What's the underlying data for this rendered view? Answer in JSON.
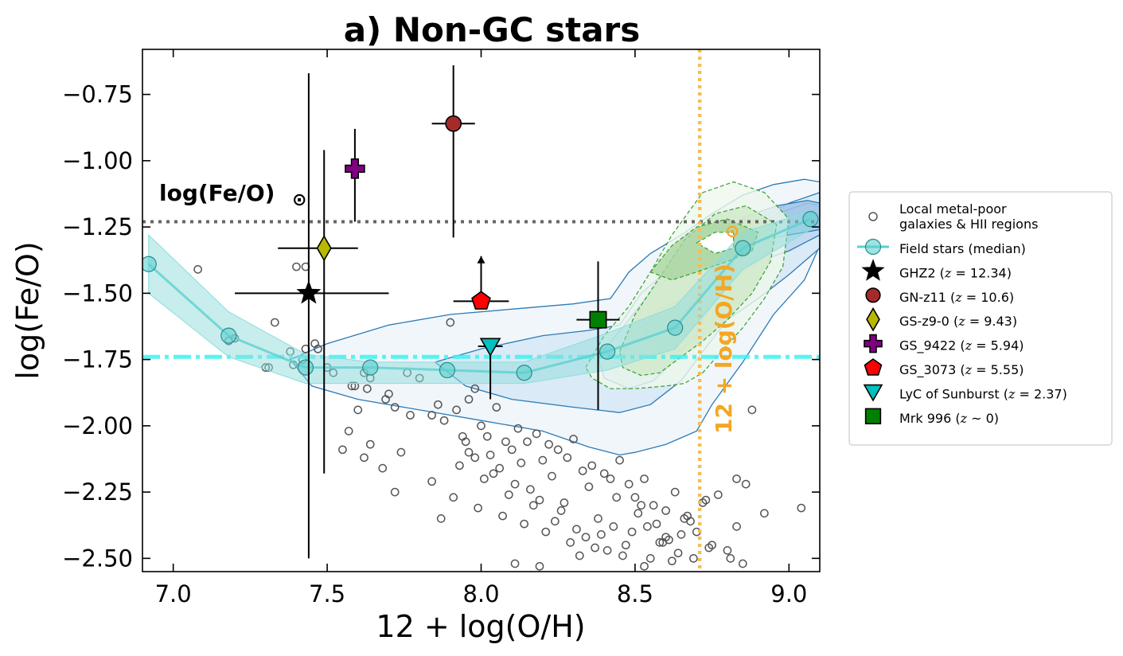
{
  "chart_data": {
    "type": "scatter",
    "title": "a) Non-GC stars",
    "xlabel": "12 + log(O/H)",
    "ylabel": "log(Fe/O)",
    "xlim": [
      6.9,
      9.1
    ],
    "ylim": [
      -2.55,
      -0.58
    ],
    "xticks": [
      7.0,
      7.5,
      8.0,
      8.5,
      9.0
    ],
    "xtick_labels": [
      "7.0",
      "7.5",
      "8.0",
      "8.5",
      "9.0"
    ],
    "yticks": [
      -0.75,
      -1.0,
      -1.25,
      -1.5,
      -1.75,
      -2.0,
      -2.25,
      -2.5
    ],
    "ytick_labels": [
      "−0.75",
      "−1.00",
      "−1.25",
      "−1.50",
      "−1.75",
      "−2.00",
      "−2.25",
      "−2.50"
    ],
    "legend_position": "right",
    "colors": {
      "field": "#5ecfcf",
      "field_band": "#8fdcdc",
      "cyan_line": "#3cf2f2",
      "solar_line": "#666666",
      "oh_line": "#f5bd55",
      "oh_text": "#f5a623",
      "contour_blue": "#2c7bb6",
      "contour_green": "#33a02c",
      "local_marker": "#555555"
    },
    "annotations": {
      "solar_fe_o_label": "log(Fe/O)",
      "solar_symbol": "⊙",
      "solar_fe_o_value": -1.23,
      "solar_oh_label": "12 + log(O/H)",
      "solar_oh_value": 8.71,
      "cyan_reference_value": -1.74
    },
    "field_stars_median": {
      "x": [
        6.92,
        7.18,
        7.43,
        7.64,
        7.89,
        8.14,
        8.41,
        8.63,
        8.85,
        9.07
      ],
      "y": [
        -1.39,
        -1.66,
        -1.78,
        -1.78,
        -1.79,
        -1.8,
        -1.72,
        -1.63,
        -1.33,
        -1.22
      ],
      "band_low": [
        -1.28,
        -1.57,
        -1.73,
        -1.76,
        -1.76,
        -1.76,
        -1.65,
        -1.55,
        -1.27,
        -1.19
      ],
      "band_high": [
        -1.5,
        -1.74,
        -1.84,
        -1.84,
        -1.84,
        -1.84,
        -1.79,
        -1.71,
        -1.41,
        -1.26
      ]
    },
    "local_metal_poor": {
      "x": [
        7.38,
        7.42,
        7.43,
        7.08,
        7.33,
        7.2,
        7.18,
        7.3,
        7.39,
        7.4,
        7.43,
        7.46,
        7.47,
        7.5,
        7.52,
        7.58,
        7.62,
        7.6,
        7.63,
        7.64,
        7.69,
        7.7,
        7.72,
        7.76,
        7.8,
        7.84,
        7.86,
        7.88,
        7.9,
        7.92,
        7.94,
        7.96,
        7.98,
        8.0,
        8.02,
        8.05,
        8.08,
        8.1,
        8.12,
        8.15,
        8.18,
        8.2,
        8.22,
        8.25,
        8.28,
        8.3,
        8.33,
        8.36,
        8.4,
        8.42,
        8.45,
        8.48,
        8.5,
        8.53,
        8.56,
        8.6,
        8.63,
        8.66,
        8.7,
        8.75,
        8.8,
        8.85,
        8.92,
        8.88,
        9.04,
        7.31,
        7.57,
        7.72,
        7.87,
        7.96,
        8.04,
        8.11,
        8.19,
        8.26,
        8.34,
        8.43,
        8.52,
        8.58,
        8.64,
        8.69,
        8.77,
        8.83,
        7.59,
        7.64,
        7.68,
        7.84,
        7.91,
        7.99,
        8.07,
        8.14,
        8.21,
        8.29,
        8.37,
        8.46,
        8.55,
        8.61,
        8.68,
        8.73,
        8.86,
        7.55,
        7.62,
        7.74,
        7.93,
        8.01,
        8.09,
        8.17,
        8.24,
        8.31,
        8.39,
        8.47,
        8.54,
        8.6,
        8.67,
        8.72,
        7.77,
        7.95,
        8.03,
        8.13,
        8.23,
        8.35,
        8.44,
        8.51,
        8.57,
        8.65,
        8.74,
        8.81,
        7.98,
        8.06,
        8.16,
        8.27,
        8.38,
        8.49,
        8.59,
        8.83,
        8.11,
        8.19,
        8.32,
        8.41,
        8.53,
        8.62
      ],
      "y": [
        -1.72,
        -1.75,
        -1.71,
        -1.41,
        -1.61,
        -1.67,
        -1.68,
        -1.78,
        -1.77,
        -1.4,
        -1.4,
        -1.69,
        -1.71,
        -1.78,
        -1.8,
        -1.85,
        -1.8,
        -1.94,
        -1.86,
        -1.82,
        -1.9,
        -1.88,
        -1.93,
        -1.8,
        -1.82,
        -1.96,
        -1.92,
        -1.98,
        -1.61,
        -1.94,
        -2.04,
        -1.9,
        -1.86,
        -2.0,
        -2.04,
        -1.93,
        -2.06,
        -2.09,
        -2.01,
        -2.06,
        -2.03,
        -2.13,
        -2.07,
        -2.09,
        -2.12,
        -2.05,
        -2.17,
        -2.15,
        -2.18,
        -2.2,
        -2.13,
        -2.22,
        -2.27,
        -2.2,
        -2.3,
        -2.32,
        -2.25,
        -2.35,
        -2.4,
        -2.45,
        -2.47,
        -2.52,
        -2.33,
        -1.94,
        -2.31,
        -1.78,
        -2.02,
        -2.25,
        -2.35,
        -2.1,
        -2.18,
        -2.22,
        -2.28,
        -2.32,
        -2.42,
        -2.38,
        -2.3,
        -2.44,
        -2.48,
        -2.5,
        -2.26,
        -2.38,
        -1.85,
        -2.07,
        -2.16,
        -2.21,
        -2.27,
        -2.31,
        -2.34,
        -2.37,
        -2.4,
        -2.44,
        -2.46,
        -2.49,
        -2.5,
        -2.43,
        -2.36,
        -2.28,
        -2.22,
        -2.09,
        -2.12,
        -2.1,
        -2.15,
        -2.2,
        -2.26,
        -2.3,
        -2.36,
        -2.39,
        -2.41,
        -2.45,
        -2.38,
        -2.42,
        -2.34,
        -2.29,
        -1.96,
        -2.06,
        -2.11,
        -2.14,
        -2.19,
        -2.23,
        -2.27,
        -2.33,
        -2.37,
        -2.41,
        -2.46,
        -2.5,
        -2.12,
        -2.16,
        -2.24,
        -2.29,
        -2.35,
        -2.4,
        -2.44,
        -2.2,
        -2.52,
        -2.53,
        -2.49,
        -2.47,
        -2.53,
        -2.51
      ]
    },
    "contours_blue": [
      {
        "x": [
          7.38,
          7.5,
          7.7,
          7.9,
          8.1,
          8.3,
          8.42,
          8.48,
          8.55,
          8.65,
          8.75,
          8.85,
          8.95,
          9.05,
          9.1,
          9.1,
          9.05,
          8.95,
          8.85,
          8.75,
          8.7,
          8.6,
          8.5,
          8.45,
          8.35,
          8.2,
          8.0,
          7.8,
          7.6,
          7.45,
          7.38
        ],
        "y": [
          -1.75,
          -1.69,
          -1.62,
          -1.58,
          -1.56,
          -1.54,
          -1.52,
          -1.42,
          -1.35,
          -1.28,
          -1.2,
          -1.13,
          -1.09,
          -1.07,
          -1.08,
          -1.32,
          -1.45,
          -1.58,
          -1.76,
          -1.92,
          -2.02,
          -2.07,
          -2.1,
          -2.11,
          -2.08,
          -2.02,
          -1.98,
          -1.94,
          -1.9,
          -1.85,
          -1.75
        ]
      },
      {
        "x": [
          7.85,
          8.0,
          8.2,
          8.35,
          8.45,
          8.52,
          8.6,
          8.7,
          8.8,
          8.9,
          9.0,
          9.1,
          9.1,
          9.0,
          8.9,
          8.8,
          8.72,
          8.65,
          8.55,
          8.45,
          8.3,
          8.1,
          7.95,
          7.85
        ],
        "y": [
          -1.76,
          -1.71,
          -1.66,
          -1.64,
          -1.62,
          -1.5,
          -1.42,
          -1.37,
          -1.3,
          -1.22,
          -1.16,
          -1.12,
          -1.33,
          -1.43,
          -1.52,
          -1.6,
          -1.72,
          -1.83,
          -1.92,
          -1.95,
          -1.93,
          -1.9,
          -1.85,
          -1.76
        ]
      },
      {
        "x": [
          8.38,
          8.48,
          8.56,
          8.66,
          8.76,
          8.86,
          8.96,
          9.06,
          9.1,
          9.1,
          9.0,
          8.9,
          8.8,
          8.72,
          8.64,
          8.56,
          8.48,
          8.4,
          8.38
        ],
        "y": [
          -1.74,
          -1.6,
          -1.48,
          -1.41,
          -1.34,
          -1.26,
          -1.2,
          -1.16,
          -1.17,
          -1.28,
          -1.34,
          -1.38,
          -1.46,
          -1.6,
          -1.74,
          -1.83,
          -1.86,
          -1.82,
          -1.74
        ]
      },
      {
        "x": [
          8.52,
          8.58,
          8.64,
          8.7,
          8.7,
          8.64,
          8.58,
          8.52
        ],
        "y": [
          -1.63,
          -1.56,
          -1.53,
          -1.56,
          -1.66,
          -1.72,
          -1.73,
          -1.63
        ]
      },
      {
        "x": [
          8.76,
          8.86,
          8.96,
          9.06,
          9.1,
          9.1,
          9.0,
          8.9,
          8.8,
          8.76
        ],
        "y": [
          -1.28,
          -1.21,
          -1.17,
          -1.15,
          -1.16,
          -1.26,
          -1.28,
          -1.3,
          -1.32,
          -1.28
        ]
      }
    ],
    "contours_green": [
      {
        "x": [
          8.34,
          8.4,
          8.48,
          8.55,
          8.62,
          8.72,
          8.82,
          8.92,
          9.0,
          8.98,
          8.92,
          8.85,
          8.78,
          8.72,
          8.66,
          8.6,
          8.5,
          8.42,
          8.36,
          8.34
        ],
        "y": [
          -1.78,
          -1.66,
          -1.55,
          -1.42,
          -1.28,
          -1.12,
          -1.08,
          -1.12,
          -1.22,
          -1.4,
          -1.52,
          -1.63,
          -1.72,
          -1.8,
          -1.84,
          -1.85,
          -1.86,
          -1.86,
          -1.82,
          -1.78
        ]
      },
      {
        "x": [
          8.45,
          8.5,
          8.58,
          8.66,
          8.76,
          8.86,
          8.96,
          8.94,
          8.88,
          8.8,
          8.72,
          8.65,
          8.58,
          8.52,
          8.46,
          8.45
        ],
        "y": [
          -1.72,
          -1.58,
          -1.44,
          -1.3,
          -1.2,
          -1.17,
          -1.24,
          -1.38,
          -1.5,
          -1.6,
          -1.68,
          -1.74,
          -1.8,
          -1.81,
          -1.78,
          -1.72
        ]
      },
      {
        "x": [
          8.55,
          8.62,
          8.7,
          8.8,
          8.9,
          8.88,
          8.8,
          8.7,
          8.62,
          8.55
        ],
        "y": [
          -1.42,
          -1.32,
          -1.25,
          -1.22,
          -1.27,
          -1.34,
          -1.38,
          -1.42,
          -1.45,
          -1.42
        ]
      },
      {
        "x": [
          8.7,
          8.76,
          8.82,
          8.82,
          8.76,
          8.7
        ],
        "y": [
          -1.31,
          -1.27,
          -1.27,
          -1.33,
          -1.35,
          -1.31
        ]
      }
    ],
    "objects": [
      {
        "name": "GHZ2",
        "label": "GHZ2 (z = 12.34)",
        "marker": "star",
        "color": "#000000",
        "x": 7.44,
        "y": -1.5,
        "xerr": [
          0.24,
          0.26
        ],
        "yerr": [
          1.0,
          0.83
        ]
      },
      {
        "name": "GN-z11",
        "label": "GN-z11 (z = 10.6)",
        "marker": "circle",
        "color": "#a52a2a",
        "x": 7.91,
        "y": -0.86,
        "xerr": [
          0.07,
          0.07
        ],
        "yerr": [
          0.43,
          0.22
        ]
      },
      {
        "name": "GS-z9-0",
        "label": "GS-z9-0 (z = 9.43)",
        "marker": "diamond",
        "color": "#b8b800",
        "x": 7.49,
        "y": -1.33,
        "xerr": [
          0.15,
          0.11
        ],
        "yerr": [
          0.85,
          0.37
        ]
      },
      {
        "name": "GS_9422",
        "label": "GS_9422 (z = 5.94)",
        "marker": "plus",
        "color": "#800080",
        "x": 7.59,
        "y": -1.03,
        "xerr": [
          0,
          0
        ],
        "yerr": [
          0.2,
          0.15
        ]
      },
      {
        "name": "GS_3073",
        "label": "GS_3073 (z = 5.55)",
        "marker": "pentagon",
        "color": "#ff0000",
        "x": 8.0,
        "y": -1.53,
        "xerr": [
          0.09,
          0.09
        ],
        "yerr": [
          0,
          0
        ],
        "lower_limit_arrow": -1.36
      },
      {
        "name": "LyC of Sunburst",
        "label": "LyC of Sunburst (z = 2.37)",
        "marker": "triangle-down",
        "color": "#00c0c0",
        "x": 8.03,
        "y": -1.7,
        "xerr": [
          0.04,
          0.04
        ],
        "yerr": [
          0.2,
          0.0
        ]
      },
      {
        "name": "Mrk 996",
        "label": "Mrk 996 (z ~ 0)",
        "marker": "square",
        "color": "#008000",
        "x": 8.38,
        "y": -1.6,
        "xerr": [
          0.07,
          0.07
        ],
        "yerr": [
          0.34,
          0.22
        ]
      }
    ],
    "legend": [
      {
        "marker": "open-circle",
        "lines": [
          "Local metal-poor",
          "galaxies & HII regions"
        ]
      },
      {
        "marker": "field-line",
        "lines": [
          "Field stars (median)"
        ]
      },
      {
        "marker": "star",
        "color": "#000000",
        "lines": [
          "GHZ2 ({z} = 12.34)"
        ]
      },
      {
        "marker": "circle",
        "color": "#a52a2a",
        "lines": [
          "GN-z11 ({z} = 10.6)"
        ]
      },
      {
        "marker": "diamond",
        "color": "#b8b800",
        "lines": [
          "GS-z9-0 ({z} = 9.43)"
        ]
      },
      {
        "marker": "plus",
        "color": "#800080",
        "lines": [
          "GS_9422 ({z} = 5.94)"
        ]
      },
      {
        "marker": "pentagon",
        "color": "#ff0000",
        "lines": [
          "GS_3073 ({z} = 5.55)"
        ]
      },
      {
        "marker": "triangle-down",
        "color": "#00c0c0",
        "lines": [
          "LyC of Sunburst ({z} = 2.37)"
        ]
      },
      {
        "marker": "square",
        "color": "#008000",
        "lines": [
          "Mrk 996 ({z} ~ 0)"
        ]
      }
    ]
  }
}
